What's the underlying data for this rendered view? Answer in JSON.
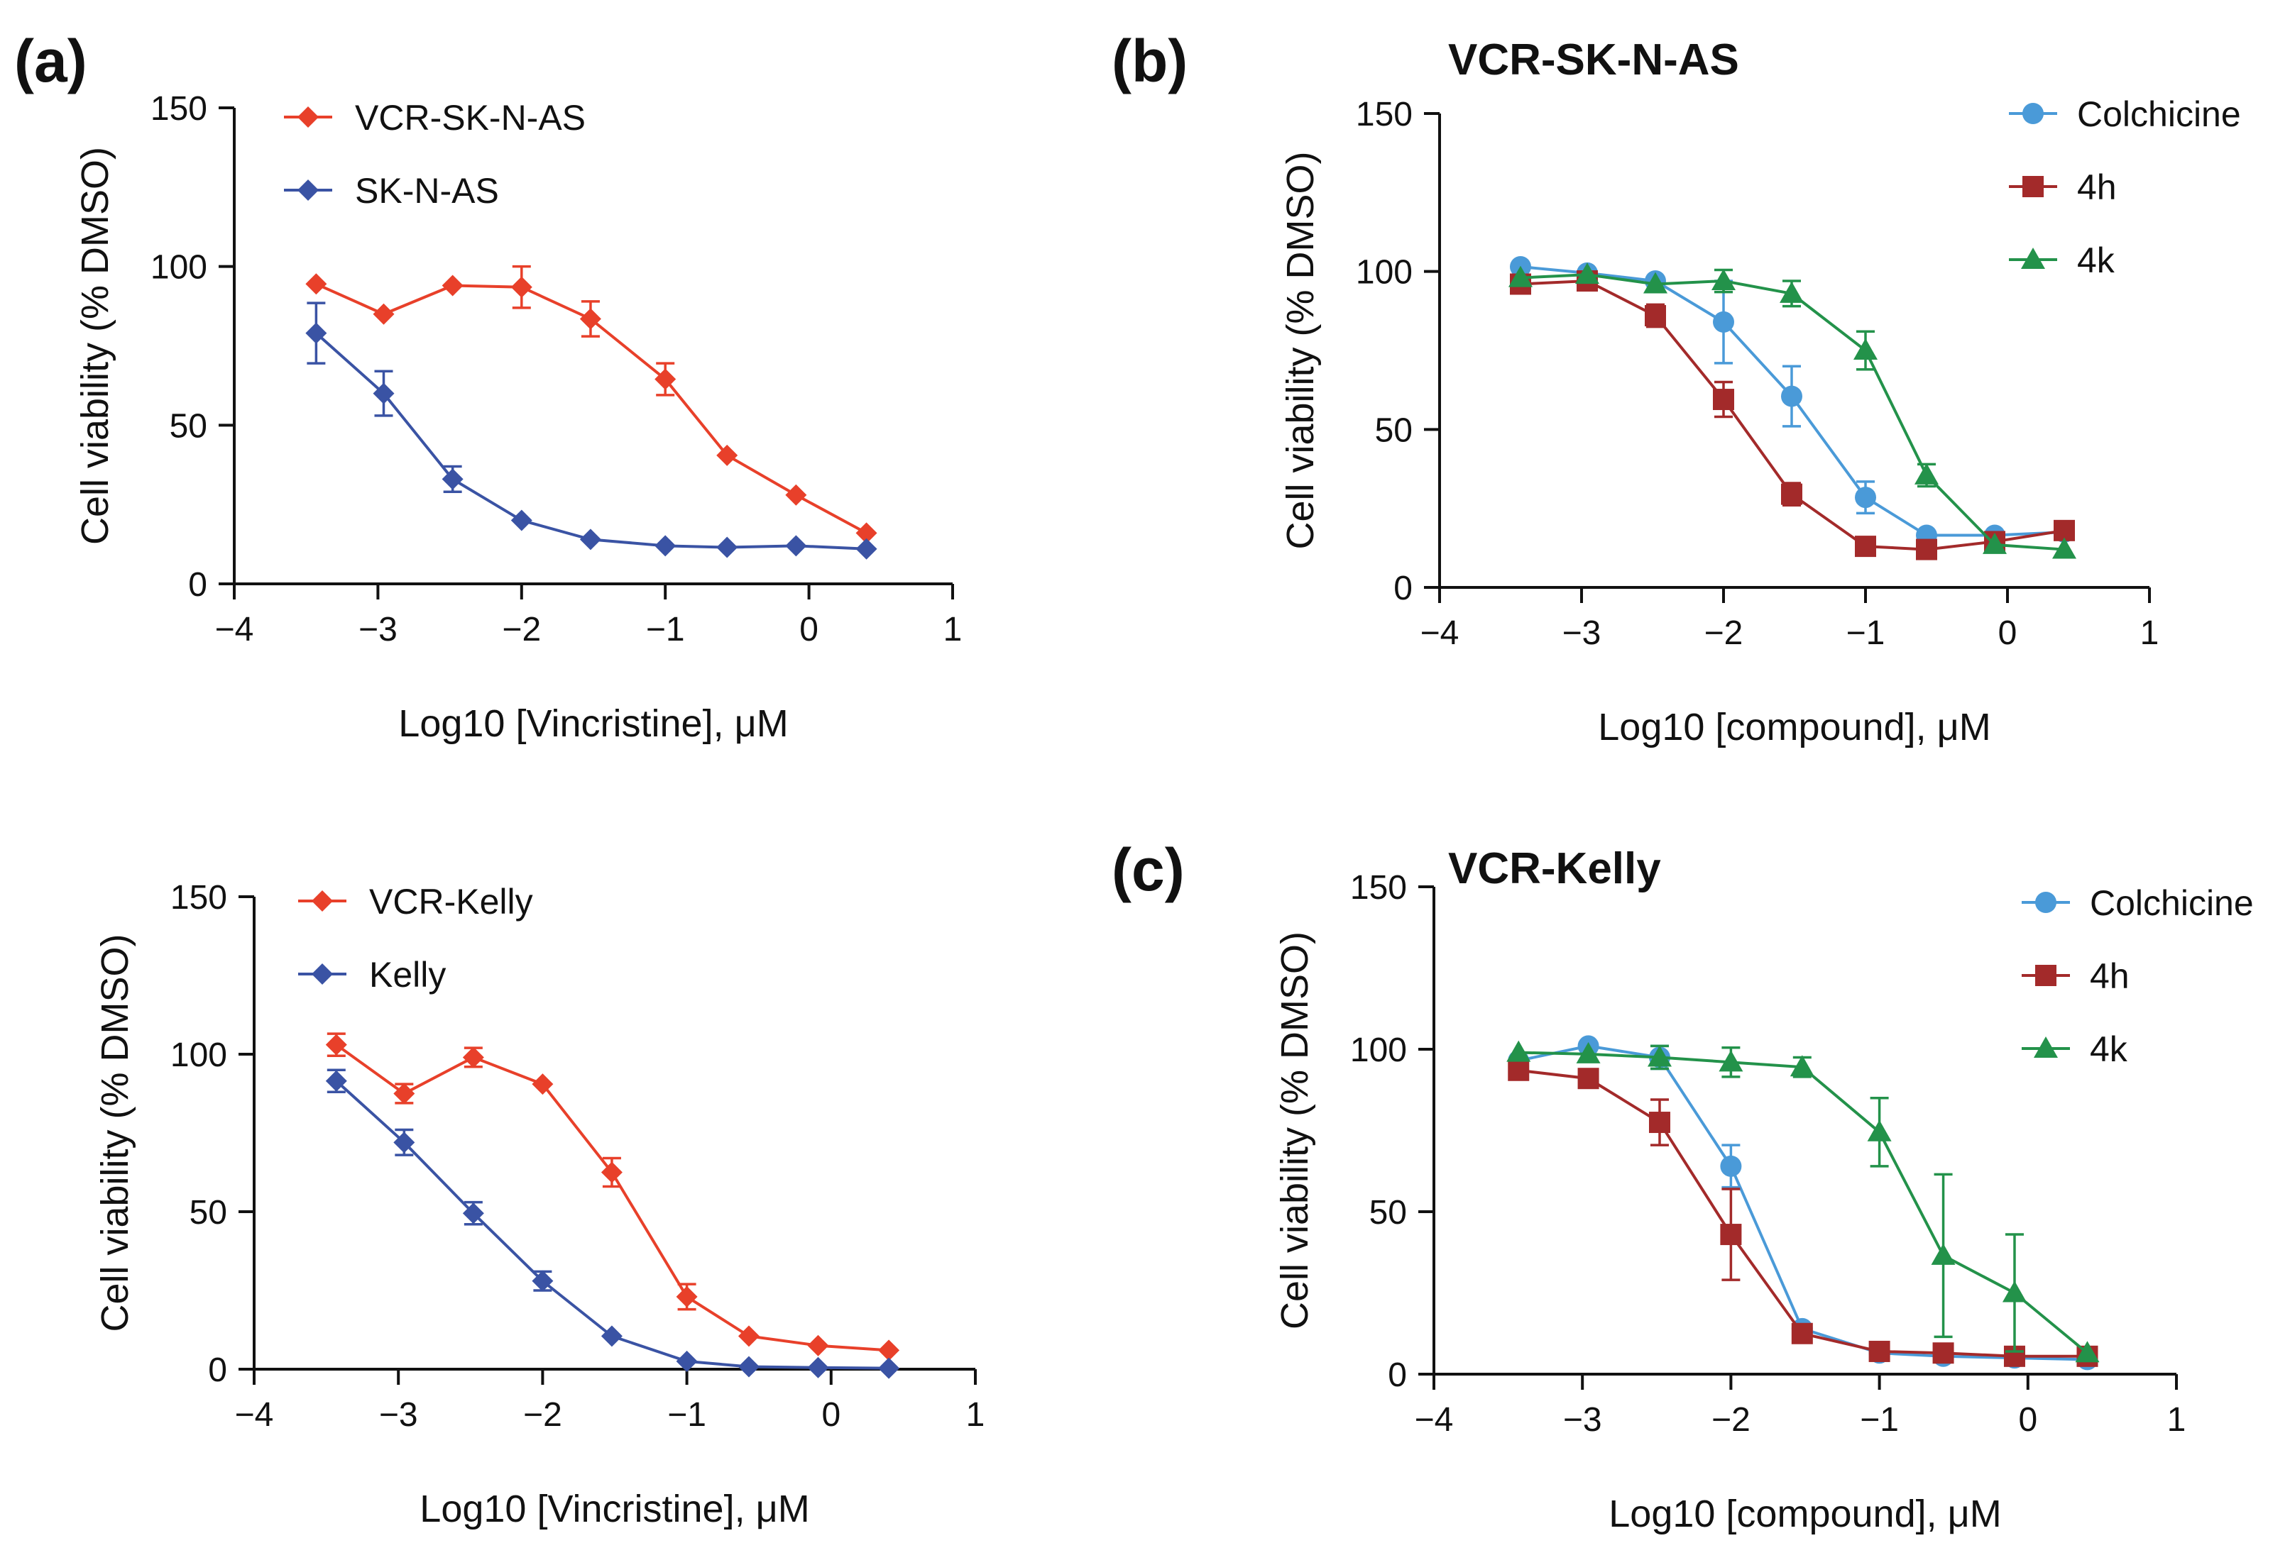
{
  "figure": {
    "panel_labels": [
      "(a)",
      "(b)",
      "(c)"
    ]
  },
  "chart_data": [
    {
      "id": "a-top",
      "type": "line",
      "title": "",
      "xlabel": "Log10 [Vincristine], μM",
      "ylabel": "Cell viability (% DMSO)",
      "xlim": [
        -4,
        1
      ],
      "ylim": [
        0,
        150
      ],
      "xticks": [
        -4,
        -3,
        -2,
        -1,
        0,
        1
      ],
      "xtick_labels": [
        "−4",
        "−3",
        "−2",
        "−1",
        "0",
        "1"
      ],
      "yticks": [
        0,
        50,
        100,
        150
      ],
      "ytick_labels": [
        "0",
        "50",
        "100",
        "150"
      ],
      "legend_position": "top-left",
      "series": [
        {
          "name": "VCR-SK-N-AS",
          "color": "#e8402a",
          "marker": "diamond",
          "x": [
            -3.43,
            -2.96,
            -2.48,
            -2.0,
            -1.52,
            -1.0,
            -0.57,
            -0.09,
            0.4
          ],
          "y": [
            94.5,
            85,
            94,
            93.5,
            83.5,
            64.5,
            40.5,
            28,
            16
          ],
          "err": [
            0,
            0,
            0,
            6.5,
            5.5,
            5,
            0,
            0,
            0
          ]
        },
        {
          "name": "SK-N-AS",
          "color": "#3a53a4",
          "marker": "diamond",
          "x": [
            -3.43,
            -2.96,
            -2.48,
            -2.0,
            -1.52,
            -1.0,
            -0.57,
            -0.09,
            0.4
          ],
          "y": [
            79,
            60,
            33,
            20,
            14,
            12,
            11.5,
            12,
            11
          ],
          "err": [
            9.5,
            7,
            4,
            0,
            0,
            0,
            0,
            0,
            0
          ]
        }
      ]
    },
    {
      "id": "a-bottom",
      "type": "line",
      "title": "",
      "xlabel": "Log10 [Vincristine], μM",
      "ylabel": "Cell viability (% DMSO)",
      "xlim": [
        -4,
        1
      ],
      "ylim": [
        0,
        150
      ],
      "xticks": [
        -4,
        -3,
        -2,
        -1,
        0,
        1
      ],
      "xtick_labels": [
        "−4",
        "−3",
        "−2",
        "−1",
        "0",
        "1"
      ],
      "yticks": [
        0,
        50,
        100,
        150
      ],
      "ytick_labels": [
        "0",
        "50",
        "100",
        "150"
      ],
      "legend_position": "top-left",
      "series": [
        {
          "name": "VCR-Kelly",
          "color": "#e8402a",
          "marker": "diamond",
          "x": [
            -3.43,
            -2.96,
            -2.48,
            -2.0,
            -1.52,
            -1.0,
            -0.57,
            -0.09,
            0.4
          ],
          "y": [
            103,
            87.5,
            99,
            90.5,
            62.5,
            23,
            10.5,
            7.5,
            6
          ],
          "err": [
            3.5,
            3,
            3,
            0,
            4.5,
            4,
            0,
            0,
            0
          ]
        },
        {
          "name": "Kelly",
          "color": "#3a53a4",
          "marker": "diamond",
          "x": [
            -3.43,
            -2.96,
            -2.48,
            -2.0,
            -1.52,
            -1.0,
            -0.57,
            -0.09,
            0.4
          ],
          "y": [
            91.5,
            72,
            49.5,
            28,
            10.5,
            2.5,
            0.8,
            0.5,
            0.3
          ],
          "err": [
            3.5,
            4,
            3.5,
            3,
            0,
            0,
            0,
            0,
            0
          ]
        }
      ]
    },
    {
      "id": "b",
      "type": "line",
      "title": "VCR-SK-N-AS",
      "xlabel": "Log10 [compound], μM",
      "ylabel": "Cell viability (% DMSO)",
      "xlim": [
        -4,
        1
      ],
      "ylim": [
        0,
        150
      ],
      "xticks": [
        -4,
        -3,
        -2,
        -1,
        0,
        1
      ],
      "xtick_labels": [
        "−4",
        "−3",
        "−2",
        "−1",
        "0",
        "1"
      ],
      "yticks": [
        0,
        50,
        100,
        150
      ],
      "ytick_labels": [
        "0",
        "50",
        "100",
        "150"
      ],
      "legend_position": "top-right",
      "series": [
        {
          "name": "Colchicine",
          "color": "#4a9ad8",
          "marker": "circle",
          "x": [
            -3.43,
            -2.96,
            -2.48,
            -2.0,
            -1.52,
            -1.0,
            -0.57,
            -0.09,
            0.4
          ],
          "y": [
            101.5,
            99.5,
            97,
            84,
            60.5,
            28.5,
            16.5,
            16.5,
            17.5
          ],
          "err": [
            0,
            0,
            0,
            13,
            9.5,
            5,
            0,
            0,
            0
          ]
        },
        {
          "name": "4h",
          "color": "#a32a2a",
          "marker": "square",
          "x": [
            -3.43,
            -2.96,
            -2.48,
            -2.0,
            -1.52,
            -1.0,
            -0.57,
            -0.09,
            0.4
          ],
          "y": [
            96,
            97,
            86,
            59.5,
            29.5,
            13,
            12,
            14.5,
            18
          ],
          "err": [
            0,
            0,
            3.5,
            5.5,
            3.5,
            0,
            0,
            0,
            0
          ]
        },
        {
          "name": "4k",
          "color": "#23924a",
          "marker": "triangle",
          "x": [
            -3.43,
            -2.96,
            -2.48,
            -2.0,
            -1.52,
            -1.0,
            -0.57,
            -0.09,
            0.4
          ],
          "y": [
            98,
            99,
            96,
            97,
            93,
            75,
            35.5,
            13.5,
            12
          ],
          "err": [
            0,
            0,
            0,
            3.5,
            4,
            6,
            3.5,
            0,
            0
          ]
        }
      ]
    },
    {
      "id": "c",
      "type": "line",
      "title": "VCR-Kelly",
      "xlabel": "Log10 [compound], μM",
      "ylabel": "Cell viability (% DMSO)",
      "xlim": [
        -4,
        1
      ],
      "ylim": [
        0,
        150
      ],
      "xticks": [
        -4,
        -3,
        -2,
        -1,
        0,
        1
      ],
      "xtick_labels": [
        "−4",
        "−3",
        "−2",
        "−1",
        "0",
        "1"
      ],
      "yticks": [
        0,
        50,
        100,
        150
      ],
      "ytick_labels": [
        "0",
        "50",
        "100",
        "150"
      ],
      "legend_position": "top-right",
      "series": [
        {
          "name": "Colchicine",
          "color": "#4a9ad8",
          "marker": "circle",
          "x": [
            -3.43,
            -2.96,
            -2.48,
            -2.0,
            -1.52,
            -1.0,
            -0.57,
            -0.09,
            0.4
          ],
          "y": [
            96.5,
            101,
            97.5,
            64,
            14,
            6.5,
            5.5,
            5,
            4.5
          ],
          "err": [
            0,
            0,
            3.5,
            6.5,
            0,
            0,
            0,
            0,
            0
          ]
        },
        {
          "name": "4h",
          "color": "#a32a2a",
          "marker": "square",
          "x": [
            -3.43,
            -2.96,
            -2.48,
            -2.0,
            -1.52,
            -1.0,
            -0.57,
            -0.09,
            0.4
          ],
          "y": [
            93.5,
            91,
            77.5,
            43,
            12.5,
            7,
            6.5,
            5.5,
            5.5
          ],
          "err": [
            0,
            0,
            7,
            14,
            0,
            0,
            0,
            0,
            0
          ]
        },
        {
          "name": "4k",
          "color": "#23924a",
          "marker": "triangle",
          "x": [
            -3.43,
            -2.96,
            -2.48,
            -2.0,
            -1.52,
            -1.0,
            -0.57,
            -0.09,
            0.4
          ],
          "y": [
            99,
            98.5,
            97.5,
            96,
            94.5,
            74.5,
            36.5,
            25,
            6.5
          ],
          "err": [
            0,
            0,
            3.5,
            4.5,
            3,
            10.5,
            25,
            18,
            0
          ]
        }
      ]
    }
  ]
}
